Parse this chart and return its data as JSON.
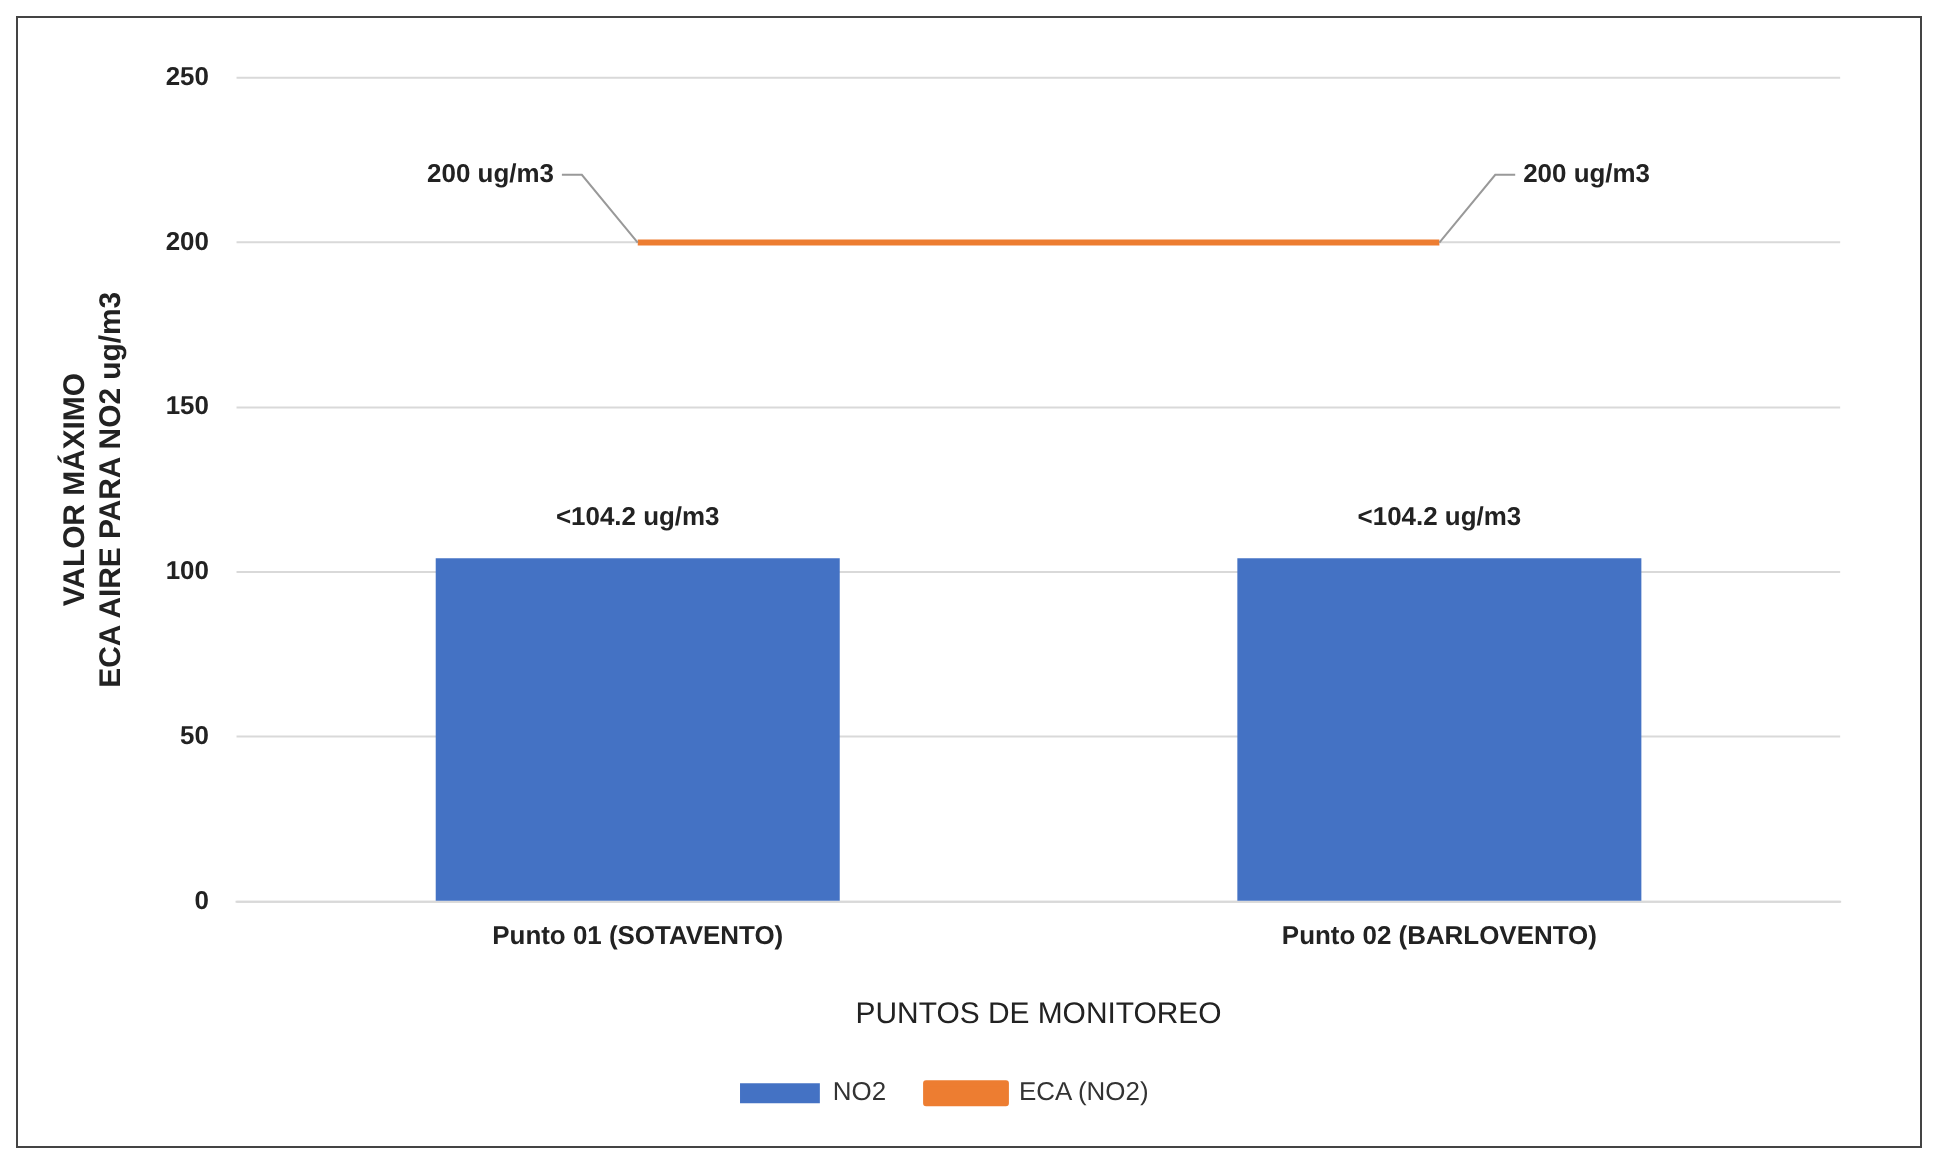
{
  "chart_data": {
    "type": "bar",
    "categories": [
      "Punto 01 (SOTAVENTO)",
      "Punto 02 (BARLOVENTO)"
    ],
    "series": [
      {
        "name": "NO2",
        "color": "#4472c4",
        "values": [
          104.2,
          104.2
        ],
        "value_labels": [
          "<104.2 ug/m3",
          "<104.2 ug/m3"
        ]
      },
      {
        "name": "ECA (NO2)",
        "type": "line",
        "color": "#ed7d31",
        "values": [
          200,
          200
        ],
        "value_labels": [
          "200 ug/m3",
          "200 ug/m3"
        ],
        "marker": "none"
      }
    ],
    "xlabel": "PUNTOS DE MONITOREO",
    "ylabel": "VALOR MÁXIMO\nECA AIRE PARA NO2 ug/m3",
    "ylim": [
      0,
      250
    ],
    "yticks": [
      0,
      50,
      100,
      150,
      200,
      250
    ],
    "grid": "y",
    "legend": "bottom"
  }
}
